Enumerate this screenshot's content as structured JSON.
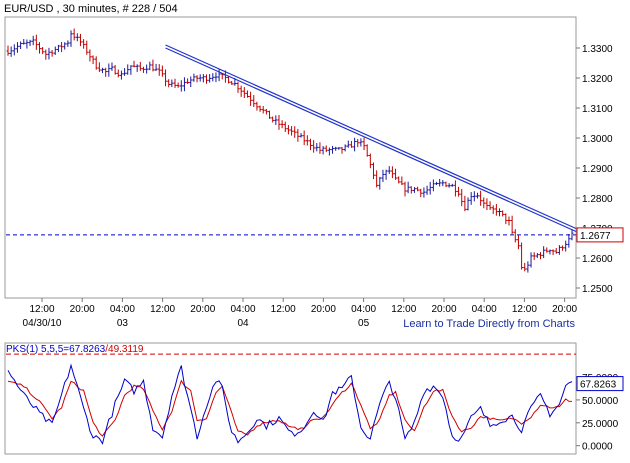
{
  "header": {
    "title": "EUR/USD , 30 minutes, # 228 / 504"
  },
  "footer": {
    "link_text": "Learn to Trade Directly from Charts"
  },
  "colors": {
    "background": "#ffffff",
    "bar_up": "#1a1aa0",
    "bar_down": "#c00000",
    "trendline": "#2233cc",
    "current_price_line": "#0000cc",
    "current_price_box": "#d00000",
    "osc_k": "#0000cc",
    "osc_d": "#d00000",
    "link": "#1a2fa0"
  },
  "chart_data": [
    {
      "type": "ohlc",
      "title": "EUR/USD , 30 minutes, # 228 / 504",
      "x_tick_labels": [
        "12:00",
        "20:00",
        "04:00",
        "12:00",
        "20:00",
        "04:00",
        "12:00",
        "20:00",
        "04:00",
        "12:00",
        "20:00",
        "04:00",
        "12:00",
        "20:00"
      ],
      "x_date_labels": [
        {
          "label": "04/30/10",
          "under_tick": 0
        },
        {
          "label": "03",
          "under_tick": 2
        },
        {
          "label": "04",
          "under_tick": 5
        },
        {
          "label": "05",
          "under_tick": 8
        }
      ],
      "y_tick_labels": [
        "1.3300",
        "1.3200",
        "1.3100",
        "1.3000",
        "1.2900",
        "1.2800",
        "1.2700",
        "1.2600",
        "1.2500"
      ],
      "ylim": [
        1.247,
        1.34
      ],
      "grid": false,
      "current_price": 1.2677,
      "current_price_label": "1.2677",
      "price_path": [
        [
          0,
          1.329
        ],
        [
          4,
          1.331
        ],
        [
          8,
          1.332
        ],
        [
          12,
          1.328
        ],
        [
          16,
          1.33
        ],
        [
          19,
          1.332
        ],
        [
          20,
          1.335
        ],
        [
          23,
          1.332
        ],
        [
          25,
          1.329
        ],
        [
          28,
          1.324
        ],
        [
          31,
          1.322
        ],
        [
          33,
          1.323
        ],
        [
          36,
          1.321
        ],
        [
          39,
          1.324
        ],
        [
          42,
          1.323
        ],
        [
          45,
          1.324
        ],
        [
          48,
          1.322
        ],
        [
          51,
          1.318
        ],
        [
          54,
          1.317
        ],
        [
          57,
          1.319
        ],
        [
          60,
          1.32
        ],
        [
          63,
          1.32
        ],
        [
          66,
          1.321
        ],
        [
          69,
          1.32
        ],
        [
          72,
          1.318
        ],
        [
          75,
          1.315
        ],
        [
          78,
          1.312
        ],
        [
          81,
          1.309
        ],
        [
          84,
          1.306
        ],
        [
          87,
          1.304
        ],
        [
          90,
          1.302
        ],
        [
          93,
          1.3
        ],
        [
          96,
          1.298
        ],
        [
          99,
          1.296
        ],
        [
          102,
          1.296
        ],
        [
          105,
          1.296
        ],
        [
          108,
          1.297
        ],
        [
          111,
          1.299
        ],
        [
          113,
          1.297
        ],
        [
          114,
          1.294
        ],
        [
          116,
          1.288
        ],
        [
          117,
          1.284
        ],
        [
          119,
          1.288
        ],
        [
          121,
          1.289
        ],
        [
          123,
          1.286
        ],
        [
          126,
          1.283
        ],
        [
          129,
          1.283
        ],
        [
          132,
          1.282
        ],
        [
          135,
          1.284
        ],
        [
          138,
          1.285
        ],
        [
          141,
          1.284
        ],
        [
          143,
          1.282
        ],
        [
          144,
          1.279
        ],
        [
          145,
          1.277
        ],
        [
          147,
          1.281
        ],
        [
          149,
          1.281
        ],
        [
          151,
          1.278
        ],
        [
          153,
          1.276
        ],
        [
          155,
          1.276
        ],
        [
          157,
          1.274
        ],
        [
          159,
          1.272
        ],
        [
          160,
          1.268
        ],
        [
          161,
          1.266
        ],
        [
          162,
          1.264
        ],
        [
          163,
          1.257
        ],
        [
          164,
          1.256
        ],
        [
          166,
          1.26
        ],
        [
          168,
          1.261
        ],
        [
          170,
          1.262
        ],
        [
          172,
          1.263
        ],
        [
          174,
          1.262
        ],
        [
          176,
          1.264
        ],
        [
          178,
          1.266
        ],
        [
          179,
          1.2677
        ]
      ],
      "trendline": {
        "from": [
          50,
          1.331
        ],
        "to": [
          179,
          1.27
        ]
      },
      "note": "",
      "bar_count": 180
    },
    {
      "type": "line",
      "legend_prefix": "PKS(1) 5,5,5=",
      "legend_k_value": "67.8263",
      "legend_separator": "/",
      "legend_d_value": "49.3119",
      "y_tick_labels": [
        "75.0000",
        "50.0000",
        "25.0000",
        "0.0000"
      ],
      "ylim": [
        -8,
        110
      ],
      "reference_line": 100,
      "current_value_label": "67.8263",
      "k_path": [
        [
          0,
          82
        ],
        [
          5,
          55
        ],
        [
          10,
          35
        ],
        [
          14,
          22
        ],
        [
          17,
          55
        ],
        [
          20,
          88
        ],
        [
          24,
          40
        ],
        [
          27,
          10
        ],
        [
          30,
          6
        ],
        [
          34,
          45
        ],
        [
          37,
          70
        ],
        [
          40,
          60
        ],
        [
          43,
          70
        ],
        [
          46,
          20
        ],
        [
          49,
          10
        ],
        [
          52,
          55
        ],
        [
          55,
          85
        ],
        [
          58,
          40
        ],
        [
          60,
          10
        ],
        [
          63,
          45
        ],
        [
          66,
          72
        ],
        [
          68,
          62
        ],
        [
          71,
          15
        ],
        [
          73,
          5
        ],
        [
          76,
          15
        ],
        [
          79,
          30
        ],
        [
          82,
          22
        ],
        [
          86,
          30
        ],
        [
          90,
          12
        ],
        [
          94,
          20
        ],
        [
          97,
          40
        ],
        [
          100,
          25
        ],
        [
          103,
          58
        ],
        [
          106,
          62
        ],
        [
          109,
          75
        ],
        [
          112,
          20
        ],
        [
          115,
          8
        ],
        [
          118,
          45
        ],
        [
          121,
          70
        ],
        [
          123,
          52
        ],
        [
          126,
          6
        ],
        [
          129,
          25
        ],
        [
          132,
          60
        ],
        [
          135,
          65
        ],
        [
          138,
          55
        ],
        [
          141,
          10
        ],
        [
          144,
          8
        ],
        [
          147,
          30
        ],
        [
          150,
          40
        ],
        [
          153,
          22
        ],
        [
          156,
          28
        ],
        [
          160,
          32
        ],
        [
          163,
          18
        ],
        [
          166,
          40
        ],
        [
          169,
          55
        ],
        [
          172,
          35
        ],
        [
          175,
          45
        ],
        [
          177,
          65
        ],
        [
          179,
          70
        ]
      ],
      "d_path": [
        [
          0,
          70
        ],
        [
          5,
          65
        ],
        [
          10,
          48
        ],
        [
          14,
          30
        ],
        [
          17,
          42
        ],
        [
          20,
          70
        ],
        [
          24,
          60
        ],
        [
          27,
          25
        ],
        [
          30,
          10
        ],
        [
          34,
          28
        ],
        [
          37,
          55
        ],
        [
          40,
          65
        ],
        [
          43,
          62
        ],
        [
          46,
          38
        ],
        [
          49,
          18
        ],
        [
          52,
          38
        ],
        [
          55,
          70
        ],
        [
          58,
          60
        ],
        [
          60,
          28
        ],
        [
          63,
          30
        ],
        [
          66,
          58
        ],
        [
          68,
          65
        ],
        [
          71,
          35
        ],
        [
          73,
          15
        ],
        [
          76,
          12
        ],
        [
          79,
          22
        ],
        [
          82,
          26
        ],
        [
          86,
          28
        ],
        [
          90,
          20
        ],
        [
          94,
          18
        ],
        [
          97,
          30
        ],
        [
          100,
          30
        ],
        [
          103,
          45
        ],
        [
          106,
          58
        ],
        [
          109,
          68
        ],
        [
          112,
          45
        ],
        [
          115,
          18
        ],
        [
          118,
          28
        ],
        [
          121,
          55
        ],
        [
          123,
          58
        ],
        [
          126,
          28
        ],
        [
          129,
          15
        ],
        [
          132,
          42
        ],
        [
          135,
          60
        ],
        [
          138,
          60
        ],
        [
          141,
          32
        ],
        [
          144,
          15
        ],
        [
          147,
          20
        ],
        [
          150,
          32
        ],
        [
          153,
          30
        ],
        [
          156,
          27
        ],
        [
          160,
          30
        ],
        [
          163,
          25
        ],
        [
          166,
          32
        ],
        [
          169,
          45
        ],
        [
          172,
          42
        ],
        [
          175,
          42
        ],
        [
          177,
          50
        ],
        [
          179,
          49
        ]
      ]
    }
  ]
}
